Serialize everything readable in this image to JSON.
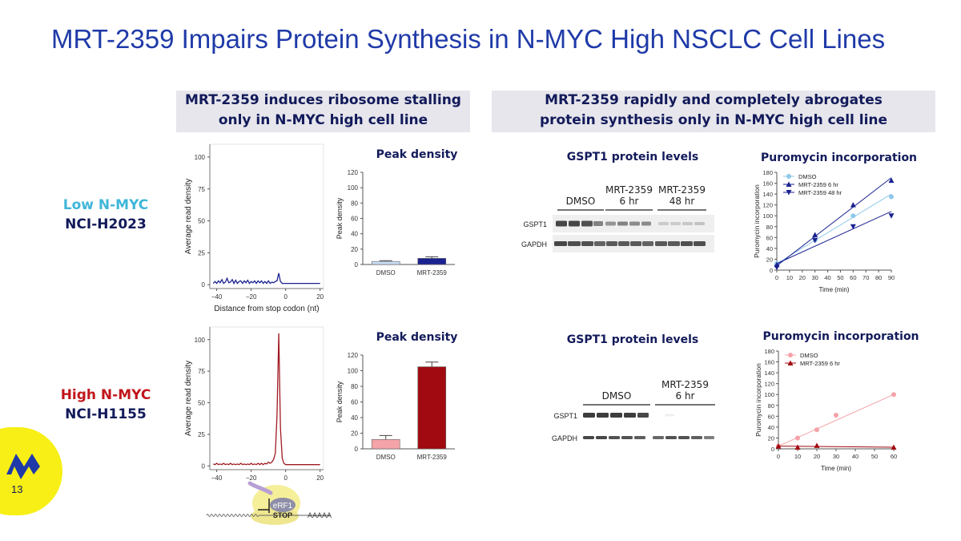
{
  "page": {
    "title": "MRT-2359 Impairs Protein Synthesis in N-MYC High NSCLC Cell Lines",
    "page_number": "13",
    "left_banner": [
      "MRT-2359 induces ribosome stalling",
      "only in N-MYC high cell line"
    ],
    "right_banner": [
      "MRT-2359 rapidly and completely abrogates",
      "protein synthesis only in N-MYC high cell line"
    ],
    "colors": {
      "title": "#1f3aa8",
      "navy": "#121a5a",
      "low_accent": "#3fb6d8",
      "high_accent": "#c0161c",
      "logo": "#1f3aa8",
      "badge": "#f7ef16"
    },
    "logo_icon": "company-logo-icon"
  },
  "rows": [
    {
      "line1": "Low N-MYC",
      "line2": "NCI-H2023",
      "line1_color": "#3fb6d8",
      "ribo": {
        "ylabel": "Average read density",
        "xlabel": "Distance from stop codon (nt)",
        "yticks": [
          "0",
          "25",
          "50",
          "75",
          "100"
        ],
        "xticks": [
          "−40",
          "−20",
          "0",
          "20"
        ]
      },
      "peak": {
        "title": "Peak density",
        "ylabel": "Peak density",
        "yticks": [
          "0",
          "20",
          "40",
          "60",
          "80",
          "100",
          "120"
        ],
        "categories": [
          "DMSO",
          "MRT-2359"
        ]
      },
      "blot": {
        "title": "GSPT1 protein levels",
        "groups": [
          [
            "DMSO"
          ],
          [
            "MRT-2359",
            "6 hr"
          ],
          [
            "MRT-2359",
            "48 hr"
          ]
        ],
        "bands": [
          "GSPT1",
          "GAPDH"
        ]
      },
      "puro": {
        "title": "Puromycin incorporation",
        "ylabel": "Puromycin incorporation",
        "xlabel": "Time (min)",
        "yticks": [
          "0",
          "20",
          "40",
          "60",
          "80",
          "100",
          "120",
          "140",
          "160",
          "180"
        ],
        "xticks": [
          "0",
          "10",
          "20",
          "30",
          "40",
          "50",
          "60",
          "70",
          "80",
          "90"
        ],
        "legend": [
          "DMSO",
          "MRT-2359 6 hr",
          "MRT-2359 48 hr"
        ]
      }
    },
    {
      "line1": "High N-MYC",
      "line2": "NCI-H1155",
      "line1_color": "#c0161c",
      "ribo": {
        "ylabel": "Average read density",
        "xlabel": "",
        "yticks": [
          "0",
          "25",
          "50",
          "75",
          "100"
        ],
        "xticks": [
          "−40",
          "−20",
          "0",
          "20"
        ]
      },
      "peak": {
        "title": "Peak density",
        "ylabel": "Peak density",
        "yticks": [
          "0",
          "20",
          "40",
          "60",
          "80",
          "100",
          "120"
        ],
        "categories": [
          "DMSO",
          "MRT-2359"
        ]
      },
      "blot": {
        "title": "GSPT1 protein levels",
        "groups": [
          [
            "DMSO"
          ],
          [
            "MRT-2359",
            "6 hr"
          ]
        ],
        "bands": [
          "GSPT1",
          "GAPDH"
        ]
      },
      "puro": {
        "title": "Puromycin incorporation",
        "ylabel": "Puromycin incorporation",
        "xlabel": "Time (min)",
        "yticks": [
          "0",
          "20",
          "40",
          "60",
          "80",
          "100",
          "120",
          "140",
          "160",
          "180"
        ],
        "xticks": [
          "0",
          "10",
          "20",
          "30",
          "40",
          "50",
          "60"
        ],
        "legend": [
          "DMSO",
          "MRT-2359 6 hr"
        ]
      }
    }
  ],
  "schematic": {
    "protein": "eRF1",
    "codon": "STOP",
    "tail": "AAAAA"
  },
  "chart_data": [
    {
      "type": "line",
      "title": "",
      "xlabel": "Distance from stop codon (nt)",
      "ylabel": "Average read density",
      "xlim": [
        -44,
        22
      ],
      "ylim": [
        -3,
        110
      ],
      "grid": false,
      "series": [
        {
          "name": "",
          "color": "#1a2290",
          "x": [
            -42,
            -41,
            -40,
            -39,
            -38,
            -37,
            -36,
            -35,
            -34,
            -33,
            -32,
            -31,
            -30,
            -29,
            -28,
            -27,
            -26,
            -25,
            -24,
            -23,
            -22,
            -21,
            -20,
            -19,
            -18,
            -17,
            -16,
            -15,
            -14,
            -13,
            -12,
            -11,
            -10,
            -9,
            -8,
            -7,
            -6,
            -5,
            -4,
            -3,
            -2,
            -1,
            0,
            1,
            2,
            3,
            4,
            5,
            6,
            7,
            8,
            9,
            10,
            11,
            12,
            13,
            14,
            15,
            16,
            17,
            18,
            19,
            20
          ],
          "y": [
            1,
            2.5,
            1,
            3,
            1.5,
            4,
            1,
            2,
            5,
            1.5,
            2,
            4,
            1,
            3.5,
            1,
            2.5,
            3,
            1,
            3,
            1.5,
            3.5,
            1,
            2.5,
            1.5,
            3,
            1,
            3,
            1.5,
            3,
            1,
            2.5,
            1,
            3,
            1,
            2,
            1.5,
            2.5,
            3,
            9,
            2.5,
            1,
            1,
            1,
            1,
            1,
            1,
            1,
            1,
            1,
            1,
            1,
            1,
            1,
            1,
            1,
            1,
            1,
            1,
            1,
            1,
            1,
            1,
            1
          ]
        }
      ]
    },
    {
      "type": "bar",
      "title": "Peak density",
      "ylabel": "Peak density",
      "ylim": [
        0,
        120
      ],
      "categories": [
        "DMSO",
        "MRT-2359"
      ],
      "values": [
        4,
        8
      ],
      "errors": [
        1,
        2
      ],
      "colors": [
        "#c8dcf4",
        "#1a2290"
      ]
    },
    {
      "type": "scatter",
      "title": "Puromycin incorporation",
      "xlabel": "Time (min)",
      "ylabel": "Puromycin incorporation",
      "xlim": [
        0,
        90
      ],
      "ylim": [
        0,
        180
      ],
      "legend": "top-left",
      "series": [
        {
          "name": "DMSO",
          "marker": "circle",
          "color": "#8ec8ea",
          "x": [
            0,
            30,
            60,
            90
          ],
          "y": [
            12,
            55,
            100,
            135
          ],
          "fit": [
            [
              0,
              12
            ],
            [
              90,
              140
            ]
          ]
        },
        {
          "name": "MRT-2359 6 hr",
          "marker": "triangle-up",
          "color": "#1a2290",
          "x": [
            0,
            30,
            60,
            90
          ],
          "y": [
            10,
            65,
            120,
            165
          ],
          "fit": [
            [
              0,
              8
            ],
            [
              90,
              170
            ]
          ]
        },
        {
          "name": "MRT-2359 48 hr",
          "marker": "triangle-down",
          "color": "#1a2290",
          "x": [
            0,
            30,
            60,
            90
          ],
          "y": [
            5,
            55,
            80,
            100
          ],
          "fit": [
            [
              0,
              12
            ],
            [
              90,
              108
            ]
          ]
        }
      ]
    },
    {
      "type": "line",
      "title": "",
      "xlabel": "",
      "ylabel": "Average read density",
      "xlim": [
        -44,
        22
      ],
      "ylim": [
        -3,
        110
      ],
      "grid": false,
      "series": [
        {
          "name": "",
          "color": "#a01a22",
          "x": [
            -42,
            -41,
            -40,
            -39,
            -38,
            -37,
            -36,
            -35,
            -34,
            -33,
            -32,
            -31,
            -30,
            -29,
            -28,
            -27,
            -26,
            -25,
            -24,
            -23,
            -22,
            -21,
            -20,
            -19,
            -18,
            -17,
            -16,
            -15,
            -14,
            -13,
            -12,
            -11,
            -10,
            -9,
            -8,
            -7,
            -6,
            -5,
            -4,
            -3,
            -2,
            -1,
            0,
            1,
            2,
            3,
            4,
            5,
            6,
            7,
            8,
            9,
            10,
            11,
            12,
            13,
            14,
            15,
            16,
            17,
            18,
            19,
            20
          ],
          "y": [
            1.5,
            1,
            2,
            1,
            1.5,
            1,
            2,
            1,
            1.5,
            1,
            2,
            1,
            1.5,
            1,
            1.5,
            1,
            2,
            1,
            1.5,
            1,
            1.5,
            1,
            2,
            1,
            1.5,
            1,
            2,
            1,
            2,
            1,
            2,
            1.5,
            3,
            2,
            3,
            5,
            10,
            40,
            105,
            30,
            6,
            2,
            1,
            1,
            1,
            1,
            1,
            1,
            1,
            1,
            1,
            1,
            1,
            1,
            1,
            1,
            1,
            1,
            1,
            1,
            1,
            1,
            1
          ]
        }
      ]
    },
    {
      "type": "bar",
      "title": "Peak density",
      "ylabel": "Peak density",
      "ylim": [
        0,
        120
      ],
      "categories": [
        "DMSO",
        "MRT-2359"
      ],
      "values": [
        12,
        105
      ],
      "errors": [
        5,
        6
      ],
      "colors": [
        "#f4a3a8",
        "#a00a10"
      ]
    },
    {
      "type": "scatter",
      "title": "Puromycin incorporation",
      "xlabel": "Time (min)",
      "ylabel": "Puromycin incorporation",
      "xlim": [
        0,
        60
      ],
      "ylim": [
        0,
        180
      ],
      "legend": "top-left",
      "series": [
        {
          "name": "DMSO",
          "marker": "circle",
          "color": "#f4a3a8",
          "x": [
            0,
            10,
            20,
            30,
            60
          ],
          "y": [
            5,
            20,
            35,
            62,
            100
          ],
          "fit": [
            [
              0,
              5
            ],
            [
              60,
              100
            ]
          ]
        },
        {
          "name": "MRT-2359 6 hr",
          "marker": "triangle-up",
          "color": "#a00a10",
          "x": [
            0,
            10,
            20,
            60
          ],
          "y": [
            5,
            3,
            6,
            3
          ],
          "fit": [
            [
              0,
              5
            ],
            [
              60,
              3
            ]
          ]
        }
      ]
    }
  ]
}
